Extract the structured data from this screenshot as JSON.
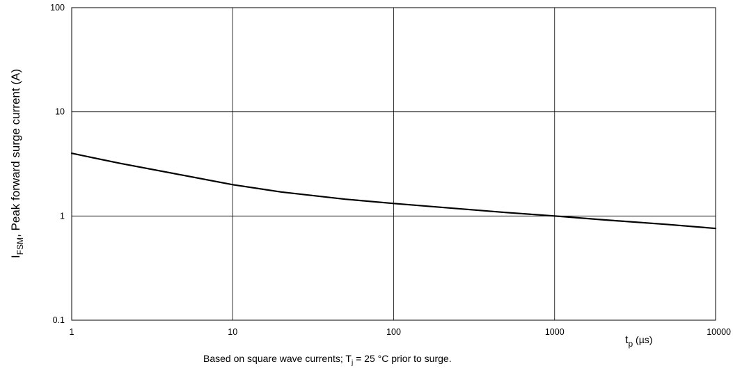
{
  "chart_data": {
    "type": "line",
    "xscale": "log",
    "yscale": "log",
    "xlim": [
      1,
      10000
    ],
    "ylim": [
      0.1,
      100
    ],
    "grid": true,
    "x_ticks": [
      "1",
      "10",
      "100",
      "1000",
      "10000"
    ],
    "y_ticks": [
      "0.1",
      "1",
      "10",
      "100"
    ],
    "ylabel": {
      "main": "I",
      "sub": "FSM",
      "rest": ", Peak forward surge current (A)"
    },
    "xlabel": {
      "main": "t",
      "sub": "p",
      "rest": " (µs)"
    },
    "caption": {
      "pre": "Based on square wave currents; T",
      "sub": "j",
      "post": " = 25 °C prior to surge."
    },
    "series": [
      {
        "x": [
          1,
          2,
          5,
          10,
          20,
          50,
          100,
          200,
          500,
          1000,
          2000,
          5000,
          10000
        ],
        "y": [
          4.0,
          3.2,
          2.45,
          2.0,
          1.7,
          1.45,
          1.32,
          1.21,
          1.08,
          1.0,
          0.92,
          0.83,
          0.76
        ],
        "color": "#000000"
      }
    ]
  }
}
